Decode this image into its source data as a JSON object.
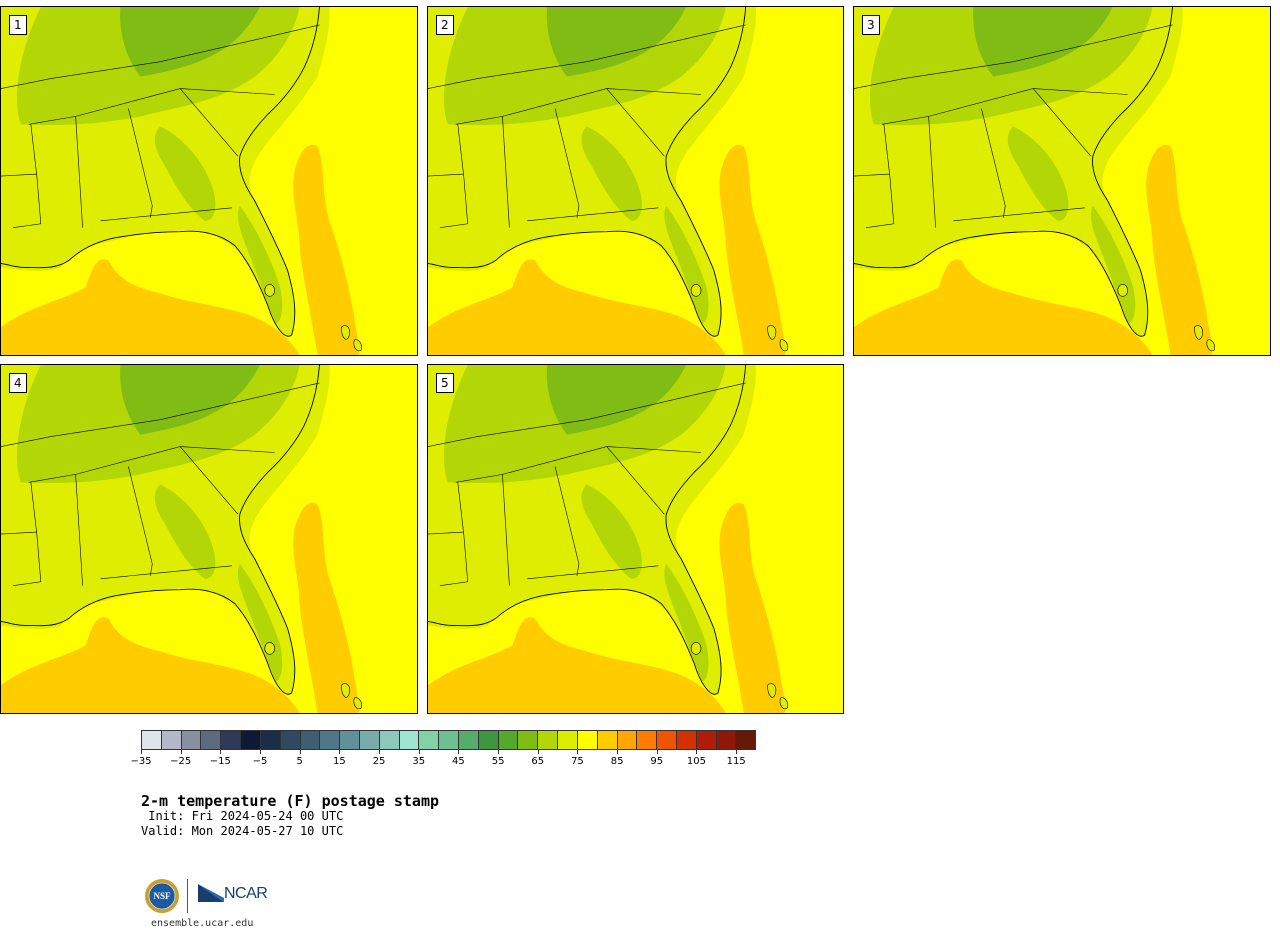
{
  "panels": [
    {
      "label": "1"
    },
    {
      "label": "2"
    },
    {
      "label": "3"
    },
    {
      "label": "4"
    },
    {
      "label": "5"
    }
  ],
  "colorbar": {
    "colors": [
      "#dfe3ea",
      "#b4b8c8",
      "#8890a0",
      "#5e6a80",
      "#2e3a58",
      "#0c1a38",
      "#1a2e4a",
      "#2e4a62",
      "#3e5e74",
      "#4e7888",
      "#609098",
      "#78acaa",
      "#8ec8bc",
      "#9ee6d2",
      "#82d2a8",
      "#6ec090",
      "#56ac6a",
      "#3e963e",
      "#56a82a",
      "#80bc14",
      "#b2d606",
      "#dcee00",
      "#ffff00",
      "#ffcc00",
      "#ffa600",
      "#ff7c00",
      "#f05400",
      "#d43000",
      "#b01c0c",
      "#901808",
      "#681808"
    ],
    "tick_values": [
      "−35",
      "−25",
      "−15",
      "−5",
      "5",
      "15",
      "25",
      "35",
      "45",
      "55",
      "65",
      "75",
      "85",
      "95",
      "105",
      "115"
    ]
  },
  "title": "2-m temperature (F) postage stamp",
  "init_line": " Init: Fri 2024-05-24 00 UTC",
  "valid_line": "Valid: Mon 2024-05-27 10 UTC",
  "logos": {
    "nsf_text": "NSF",
    "ncar_text": "NCAR"
  },
  "site_url": "ensemble.ucar.edu"
}
